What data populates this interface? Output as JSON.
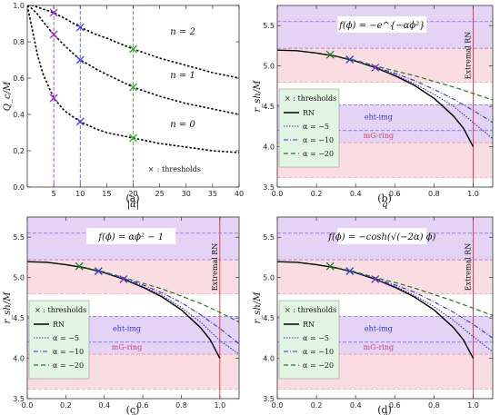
{
  "chart_data": [
    {
      "panel": "a",
      "type": "line",
      "caption": "(a)",
      "xlabel": "|α|",
      "ylabel": "Q_c/M",
      "xlim": [
        0,
        40
      ],
      "ylim": [
        0,
        1
      ],
      "xticks": [
        "5",
        "10",
        "15",
        "20",
        "25",
        "30",
        "35",
        "40"
      ],
      "yticks": [
        "0.0",
        "0.2",
        "0.4",
        "0.6",
        "0.8",
        "1.0"
      ],
      "series": [
        {
          "name": "n = 2",
          "x": [
            0,
            1,
            2,
            3,
            5,
            7,
            10,
            13,
            15,
            20,
            25,
            30,
            35,
            40
          ],
          "y": [
            1,
            1,
            0.99,
            0.98,
            0.96,
            0.93,
            0.88,
            0.84,
            0.82,
            0.76,
            0.71,
            0.67,
            0.63,
            0.6
          ]
        },
        {
          "name": "n = 1",
          "x": [
            0,
            1,
            2,
            3,
            5,
            7,
            10,
            13,
            15,
            20,
            25,
            30,
            35,
            40
          ],
          "y": [
            1,
            0.98,
            0.95,
            0.91,
            0.84,
            0.78,
            0.7,
            0.65,
            0.62,
            0.55,
            0.5,
            0.46,
            0.43,
            0.4
          ]
        },
        {
          "name": "n = 0",
          "x": [
            0,
            1,
            2,
            3,
            5,
            7,
            10,
            13,
            15,
            20,
            25,
            30,
            35,
            40
          ],
          "y": [
            1,
            0.86,
            0.72,
            0.62,
            0.49,
            0.42,
            0.36,
            0.32,
            0.3,
            0.27,
            0.24,
            0.22,
            0.2,
            0.19
          ]
        }
      ],
      "curve_labels": [
        {
          "text": "n = 2",
          "x": 27,
          "y": 0.84
        },
        {
          "text": "n = 1",
          "x": 27,
          "y": 0.6
        },
        {
          "text": "n = 0",
          "x": 27,
          "y": 0.33
        }
      ],
      "vlines": [
        {
          "x": 5,
          "color": "#9933cc"
        },
        {
          "x": 10,
          "color": "#4444dd"
        },
        {
          "x": 20,
          "color": "#33aa33"
        }
      ],
      "thresholds": [
        {
          "x": 5,
          "y": 0.96,
          "color": "#9933cc"
        },
        {
          "x": 5,
          "y": 0.84,
          "color": "#9933cc"
        },
        {
          "x": 5,
          "y": 0.49,
          "color": "#9933cc"
        },
        {
          "x": 10,
          "y": 0.88,
          "color": "#4444dd"
        },
        {
          "x": 10,
          "y": 0.7,
          "color": "#4444dd"
        },
        {
          "x": 10,
          "y": 0.36,
          "color": "#4444dd"
        },
        {
          "x": 20,
          "y": 0.76,
          "color": "#33aa33"
        },
        {
          "x": 20,
          "y": 0.55,
          "color": "#33aa33"
        },
        {
          "x": 20,
          "y": 0.27,
          "color": "#33aa33"
        }
      ],
      "legend": {
        "marker": "×",
        "label": ":  thresholds"
      }
    },
    {
      "panel": "b",
      "type": "line",
      "caption": "(b)",
      "func": "f(ϕ) = −e^{−αϕ²}",
      "xlabel": "q",
      "ylabel": "r_sh/M",
      "xlim": [
        0,
        1.1
      ],
      "ylim": [
        3.5,
        5.75
      ],
      "xticks": [
        "0.0",
        "0.2",
        "0.4",
        "0.6",
        "0.8",
        "1.0"
      ],
      "yticks": [
        "3.5",
        "4.0",
        "4.5",
        "5.0",
        "5.5"
      ],
      "bands": [
        {
          "y0": 5.22,
          "y1": 5.75,
          "color": "#e4d3f4"
        },
        {
          "y0": 4.8,
          "y1": 5.22,
          "color": "#f9dde2"
        },
        {
          "y0": 4.05,
          "y1": 4.52,
          "color": "#e4d3f4"
        },
        {
          "y0": 3.62,
          "y1": 4.05,
          "color": "#f9dde2"
        }
      ],
      "band_lines": [
        {
          "y": 5.55,
          "color": "#9966cc"
        },
        {
          "y": 5.22,
          "color": "#9966cc"
        },
        {
          "y": 4.8,
          "color": "#ee8899"
        },
        {
          "y": 4.52,
          "color": "#6666dd"
        },
        {
          "y": 4.2,
          "color": "#6666dd"
        },
        {
          "y": 4.05,
          "color": "#ee8899"
        },
        {
          "y": 3.62,
          "color": "#ee8899"
        }
      ],
      "region_labels": [
        {
          "text": "eht-img",
          "y": 4.37,
          "color": "#3333cc"
        },
        {
          "text": "mG-ring",
          "y": 4.14,
          "color": "#cc4477"
        }
      ],
      "extremal_label": "Extremal RN",
      "extremal_x": 1.0,
      "series": [
        {
          "name": "RN",
          "x": [
            0,
            0.1,
            0.2,
            0.3,
            0.4,
            0.5,
            0.6,
            0.7,
            0.8,
            0.9,
            0.95,
            1.0
          ],
          "y": [
            5.196,
            5.19,
            5.16,
            5.12,
            5.06,
            4.98,
            4.88,
            4.76,
            4.6,
            4.38,
            4.23,
            4.0
          ],
          "color": "#000000",
          "dash": "",
          "width": 1.4
        },
        {
          "name": "α = −5",
          "x": [
            0.5,
            0.6,
            0.7,
            0.8,
            0.9,
            1.0,
            1.1
          ],
          "y": [
            4.98,
            4.89,
            4.78,
            4.65,
            4.5,
            4.3,
            4.1
          ],
          "color": "#3333aa",
          "dash": "1.5,1.5",
          "width": 1.1
        },
        {
          "name": "α = −10",
          "x": [
            0.37,
            0.5,
            0.6,
            0.7,
            0.8,
            0.9,
            1.0,
            1.1
          ],
          "y": [
            5.08,
            4.99,
            4.91,
            4.82,
            4.71,
            4.59,
            4.45,
            4.3
          ],
          "color": "#3333cc",
          "dash": "5,2,1,2",
          "width": 1.1
        },
        {
          "name": "α = −20",
          "x": [
            0.27,
            0.4,
            0.5,
            0.6,
            0.7,
            0.8,
            0.9,
            1.0,
            1.1
          ],
          "y": [
            5.14,
            5.07,
            5.0,
            4.94,
            4.88,
            4.81,
            4.74,
            4.66,
            4.58
          ],
          "color": "#227722",
          "dash": "5,3",
          "width": 1.2
        }
      ],
      "thresholds": [
        {
          "x": 0.27,
          "y": 5.14,
          "color": "#227722"
        },
        {
          "x": 0.37,
          "y": 5.08,
          "color": "#3333cc"
        },
        {
          "x": 0.5,
          "y": 4.98,
          "color": "#7733aa"
        }
      ],
      "legend": {
        "title": "×  :  thresholds",
        "entries": [
          "RN",
          "α = −5",
          "α = −10",
          "α = −20"
        ]
      }
    },
    {
      "panel": "c",
      "type": "line",
      "caption": "(c)",
      "func": "f(ϕ) = αϕ² − 1",
      "xlabel": "q",
      "ylabel": "r_sh/M",
      "xlim": [
        0,
        1.1
      ],
      "ylim": [
        3.5,
        5.75
      ],
      "xticks": [
        "0.0",
        "0.2",
        "0.4",
        "0.6",
        "0.8",
        "1.0"
      ],
      "yticks": [
        "3.5",
        "4.0",
        "4.5",
        "5.0",
        "5.5"
      ],
      "bands": [
        {
          "y0": 5.22,
          "y1": 5.75,
          "color": "#e4d3f4"
        },
        {
          "y0": 4.8,
          "y1": 5.22,
          "color": "#f9dde2"
        },
        {
          "y0": 4.05,
          "y1": 4.52,
          "color": "#e4d3f4"
        },
        {
          "y0": 3.62,
          "y1": 4.05,
          "color": "#f9dde2"
        }
      ],
      "band_lines": [
        {
          "y": 5.55,
          "color": "#9966cc"
        },
        {
          "y": 5.22,
          "color": "#9966cc"
        },
        {
          "y": 4.8,
          "color": "#ee8899"
        },
        {
          "y": 4.52,
          "color": "#6666dd"
        },
        {
          "y": 4.2,
          "color": "#6666dd"
        },
        {
          "y": 4.05,
          "color": "#ee8899"
        },
        {
          "y": 3.62,
          "color": "#ee8899"
        }
      ],
      "region_labels": [
        {
          "text": "eht-img",
          "y": 4.37,
          "color": "#3333cc"
        },
        {
          "text": "mG-ring",
          "y": 4.14,
          "color": "#cc4477"
        }
      ],
      "extremal_label": "Extremal RN",
      "extremal_x": 1.0,
      "series": [
        {
          "name": "RN",
          "x": [
            0,
            0.1,
            0.2,
            0.3,
            0.4,
            0.5,
            0.6,
            0.7,
            0.8,
            0.9,
            0.95,
            1.0
          ],
          "y": [
            5.196,
            5.19,
            5.16,
            5.12,
            5.06,
            4.98,
            4.88,
            4.76,
            4.6,
            4.38,
            4.23,
            4.0
          ],
          "color": "#000000",
          "dash": "",
          "width": 1.4
        },
        {
          "name": "α = −5",
          "x": [
            0.5,
            0.6,
            0.7,
            0.8,
            0.9,
            1.0,
            1.1
          ],
          "y": [
            4.98,
            4.89,
            4.78,
            4.63,
            4.45,
            4.22,
            4.05
          ],
          "color": "#3333aa",
          "dash": "1.5,1.5",
          "width": 1.1
        },
        {
          "name": "α = −10",
          "x": [
            0.37,
            0.5,
            0.6,
            0.7,
            0.8,
            0.9,
            1.0,
            1.1
          ],
          "y": [
            5.08,
            4.99,
            4.91,
            4.81,
            4.69,
            4.54,
            4.37,
            4.18
          ],
          "color": "#3333cc",
          "dash": "5,2,1,2",
          "width": 1.1
        },
        {
          "name": "α = −20",
          "x": [
            0.27,
            0.4,
            0.5,
            0.6,
            0.7,
            0.8,
            0.9,
            1.0,
            1.1
          ],
          "y": [
            5.14,
            5.07,
            5.0,
            4.93,
            4.86,
            4.77,
            4.68,
            4.57,
            4.45
          ],
          "color": "#227722",
          "dash": "5,3",
          "width": 1.2
        }
      ],
      "thresholds": [
        {
          "x": 0.27,
          "y": 5.14,
          "color": "#227722"
        },
        {
          "x": 0.37,
          "y": 5.08,
          "color": "#3333cc"
        },
        {
          "x": 0.5,
          "y": 4.98,
          "color": "#7733aa"
        }
      ],
      "legend": {
        "title": "×  :  thresholds",
        "entries": [
          "RN",
          "α = −5",
          "α = −10",
          "α = −20"
        ]
      }
    },
    {
      "panel": "d",
      "type": "line",
      "caption": "(d)",
      "func": "f(ϕ) = −cosh(√(−2α) ϕ)",
      "xlabel": "q",
      "ylabel": "r_sh/M",
      "xlim": [
        0,
        1.1
      ],
      "ylim": [
        3.5,
        5.75
      ],
      "xticks": [
        "0.0",
        "0.2",
        "0.4",
        "0.6",
        "0.8",
        "1.0"
      ],
      "yticks": [
        "3.5",
        "4.0",
        "4.5",
        "5.0",
        "5.5"
      ],
      "bands": [
        {
          "y0": 5.22,
          "y1": 5.75,
          "color": "#e4d3f4"
        },
        {
          "y0": 4.8,
          "y1": 5.22,
          "color": "#f9dde2"
        },
        {
          "y0": 4.05,
          "y1": 4.52,
          "color": "#e4d3f4"
        },
        {
          "y0": 3.62,
          "y1": 4.05,
          "color": "#f9dde2"
        }
      ],
      "band_lines": [
        {
          "y": 5.55,
          "color": "#9966cc"
        },
        {
          "y": 5.22,
          "color": "#9966cc"
        },
        {
          "y": 4.8,
          "color": "#ee8899"
        },
        {
          "y": 4.52,
          "color": "#6666dd"
        },
        {
          "y": 4.2,
          "color": "#6666dd"
        },
        {
          "y": 4.05,
          "color": "#ee8899"
        },
        {
          "y": 3.62,
          "color": "#ee8899"
        }
      ],
      "region_labels": [
        {
          "text": "eht-img",
          "y": 4.37,
          "color": "#3333cc"
        },
        {
          "text": "mG-ring",
          "y": 4.14,
          "color": "#cc4477"
        }
      ],
      "extremal_label": "Extremal RN",
      "extremal_x": 1.0,
      "series": [
        {
          "name": "RN",
          "x": [
            0,
            0.1,
            0.2,
            0.3,
            0.4,
            0.5,
            0.6,
            0.7,
            0.8,
            0.9,
            0.95,
            1.0
          ],
          "y": [
            5.196,
            5.19,
            5.16,
            5.12,
            5.06,
            4.98,
            4.88,
            4.76,
            4.6,
            4.38,
            4.23,
            4.0
          ],
          "color": "#000000",
          "dash": "",
          "width": 1.4
        },
        {
          "name": "α = −5",
          "x": [
            0.5,
            0.6,
            0.7,
            0.8,
            0.9,
            1.0,
            1.1
          ],
          "y": [
            4.98,
            4.89,
            4.78,
            4.64,
            4.47,
            4.27,
            4.08
          ],
          "color": "#3333aa",
          "dash": "1.5,1.5",
          "width": 1.1
        },
        {
          "name": "α = −10",
          "x": [
            0.37,
            0.5,
            0.6,
            0.7,
            0.8,
            0.9,
            1.0,
            1.1
          ],
          "y": [
            5.08,
            4.99,
            4.91,
            4.82,
            4.7,
            4.57,
            4.42,
            4.25
          ],
          "color": "#3333cc",
          "dash": "5,2,1,2",
          "width": 1.1
        },
        {
          "name": "α = −20",
          "x": [
            0.27,
            0.4,
            0.5,
            0.6,
            0.7,
            0.8,
            0.9,
            1.0,
            1.1
          ],
          "y": [
            5.14,
            5.07,
            5.0,
            4.94,
            4.87,
            4.79,
            4.71,
            4.62,
            4.53
          ],
          "color": "#227722",
          "dash": "5,3",
          "width": 1.2
        }
      ],
      "thresholds": [
        {
          "x": 0.27,
          "y": 5.14,
          "color": "#227722"
        },
        {
          "x": 0.37,
          "y": 5.08,
          "color": "#3333cc"
        },
        {
          "x": 0.5,
          "y": 4.98,
          "color": "#7733aa"
        }
      ],
      "legend": {
        "title": "×  :  thresholds",
        "entries": [
          "RN",
          "α = −5",
          "α = −10",
          "α = −20"
        ]
      }
    }
  ]
}
